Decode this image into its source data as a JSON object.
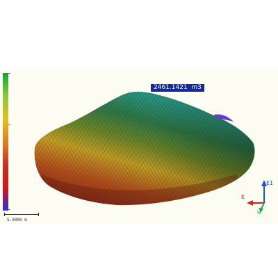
{
  "viewer": {
    "volume_label": "2461.1421  m3",
    "scale_label": "5.0000 m",
    "colors": {
      "background": "#fdfcf2",
      "label_bg": "#142a9a",
      "label_text": "#ffffff"
    },
    "legend": {
      "gradient": [
        "#0aa83a",
        "#8fc63a",
        "#e0c020",
        "#e08020",
        "#c83020",
        "#d01818",
        "#3030d0"
      ]
    },
    "axes": {
      "up_label": "E1",
      "left_label": "E",
      "down_label": "N",
      "up_color": "#2050e0",
      "left_color": "#e02020",
      "down_color": "#20b040"
    }
  }
}
